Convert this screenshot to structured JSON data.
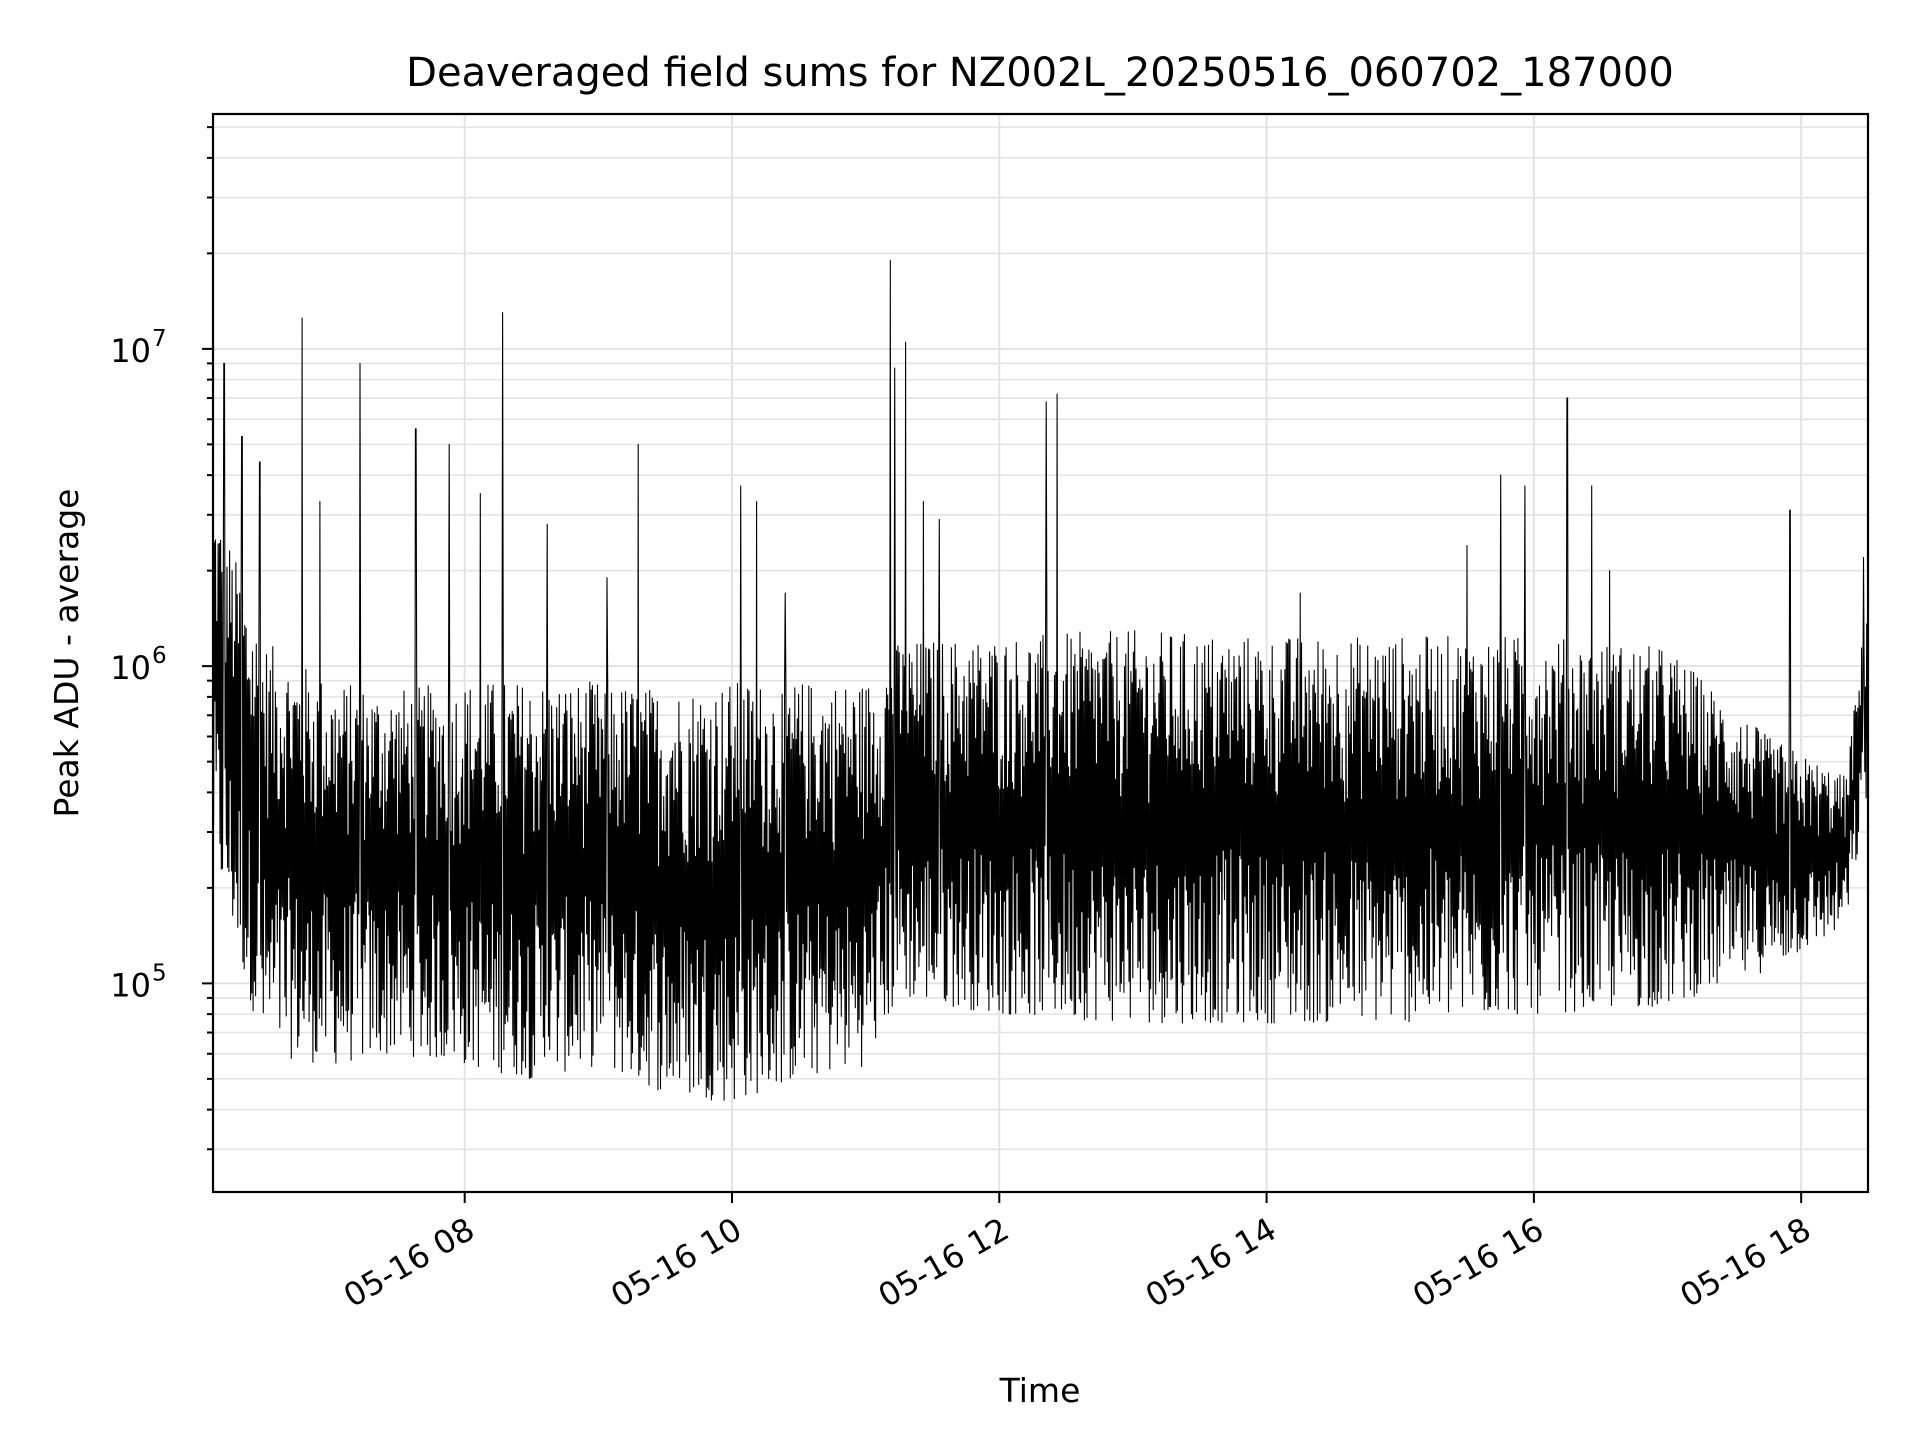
{
  "chart_data": {
    "type": "line",
    "title": "Deaveraged field sums for NZ002L_20250516_060702_187000",
    "xlabel": "Time",
    "ylabel": "Peak ADU - average",
    "y_scale": "log",
    "ylim": [
      22000,
      55000000
    ],
    "xlim": [
      "2025-05-16 06:07",
      "2025-05-16 18:30"
    ],
    "x_ticks": [
      {
        "label": "05-16 08",
        "value": "2025-05-16 08:00"
      },
      {
        "label": "05-16 10",
        "value": "2025-05-16 10:00"
      },
      {
        "label": "05-16 12",
        "value": "2025-05-16 12:00"
      },
      {
        "label": "05-16 14",
        "value": "2025-05-16 14:00"
      },
      {
        "label": "05-16 16",
        "value": "2025-05-16 16:00"
      },
      {
        "label": "05-16 18",
        "value": "2025-05-16 18:00"
      }
    ],
    "y_ticks": [
      {
        "base": "10",
        "exp": "5",
        "value": 100000
      },
      {
        "base": "10",
        "exp": "6",
        "value": 1000000
      },
      {
        "base": "10",
        "exp": "7",
        "value": 10000000
      }
    ],
    "grid": true,
    "line_color": "#000000",
    "series": [
      {
        "name": "",
        "note_hidden": "",
        "envelope": [
          {
            "t": "2025-05-16 06:07",
            "low": 250000,
            "high": 3500000
          },
          {
            "t": "2025-05-16 06:30",
            "low": 60000,
            "high": 1200000
          },
          {
            "t": "2025-05-16 07:00",
            "low": 55000,
            "high": 900000
          },
          {
            "t": "2025-05-16 07:30",
            "low": 60000,
            "high": 850000
          },
          {
            "t": "2025-05-16 08:00",
            "low": 55000,
            "high": 900000
          },
          {
            "t": "2025-05-16 08:30",
            "low": 50000,
            "high": 900000
          },
          {
            "t": "2025-05-16 09:00",
            "low": 55000,
            "high": 900000
          },
          {
            "t": "2025-05-16 09:30",
            "low": 45000,
            "high": 850000
          },
          {
            "t": "2025-05-16 10:00",
            "low": 42000,
            "high": 900000
          },
          {
            "t": "2025-05-16 10:30",
            "low": 50000,
            "high": 900000
          },
          {
            "t": "2025-05-16 11:00",
            "low": 55000,
            "high": 900000
          },
          {
            "t": "2025-05-16 11:15",
            "low": 90000,
            "high": 1200000
          },
          {
            "t": "2025-05-16 12:00",
            "low": 80000,
            "high": 1250000
          },
          {
            "t": "2025-05-16 13:00",
            "low": 75000,
            "high": 1300000
          },
          {
            "t": "2025-05-16 14:00",
            "low": 75000,
            "high": 1250000
          },
          {
            "t": "2025-05-16 15:00",
            "low": 75000,
            "high": 1250000
          },
          {
            "t": "2025-05-16 16:00",
            "low": 80000,
            "high": 1250000
          },
          {
            "t": "2025-05-16 17:00",
            "low": 85000,
            "high": 1150000
          },
          {
            "t": "2025-05-16 17:45",
            "low": 110000,
            "high": 600000
          },
          {
            "t": "2025-05-16 18:20",
            "low": 150000,
            "high": 450000
          },
          {
            "t": "2025-05-16 18:30",
            "low": 400000,
            "high": 1700000
          }
        ],
        "spikes": [
          {
            "t": "2025-05-16 06:12",
            "value": 9000000
          },
          {
            "t": "2025-05-16 06:20",
            "value": 5300000
          },
          {
            "t": "2025-05-16 06:28",
            "value": 4400000
          },
          {
            "t": "2025-05-16 06:47",
            "value": 12500000
          },
          {
            "t": "2025-05-16 06:55",
            "value": 3300000
          },
          {
            "t": "2025-05-16 07:13",
            "value": 9000000
          },
          {
            "t": "2025-05-16 07:38",
            "value": 5600000
          },
          {
            "t": "2025-05-16 07:53",
            "value": 5000000
          },
          {
            "t": "2025-05-16 08:17",
            "value": 13000000
          },
          {
            "t": "2025-05-16 08:07",
            "value": 3500000
          },
          {
            "t": "2025-05-16 08:37",
            "value": 2800000
          },
          {
            "t": "2025-05-16 09:04",
            "value": 1900000
          },
          {
            "t": "2025-05-16 09:18",
            "value": 5000000
          },
          {
            "t": "2025-05-16 10:04",
            "value": 3700000
          },
          {
            "t": "2025-05-16 10:11",
            "value": 3300000
          },
          {
            "t": "2025-05-16 10:24",
            "value": 1700000
          },
          {
            "t": "2025-05-16 11:11",
            "value": 19000000
          },
          {
            "t": "2025-05-16 11:13",
            "value": 8700000
          },
          {
            "t": "2025-05-16 11:18",
            "value": 10500000
          },
          {
            "t": "2025-05-16 11:26",
            "value": 3300000
          },
          {
            "t": "2025-05-16 11:33",
            "value": 2900000
          },
          {
            "t": "2025-05-16 12:21",
            "value": 6800000
          },
          {
            "t": "2025-05-16 12:26",
            "value": 7200000
          },
          {
            "t": "2025-05-16 14:15",
            "value": 1700000
          },
          {
            "t": "2025-05-16 15:30",
            "value": 2400000
          },
          {
            "t": "2025-05-16 15:45",
            "value": 4000000
          },
          {
            "t": "2025-05-16 15:56",
            "value": 3700000
          },
          {
            "t": "2025-05-16 16:15",
            "value": 7000000
          },
          {
            "t": "2025-05-16 16:26",
            "value": 3700000
          },
          {
            "t": "2025-05-16 16:34",
            "value": 2000000
          },
          {
            "t": "2025-05-16 17:55",
            "value": 3100000
          },
          {
            "t": "2025-05-16 18:28",
            "value": 2200000
          }
        ]
      }
    ]
  }
}
